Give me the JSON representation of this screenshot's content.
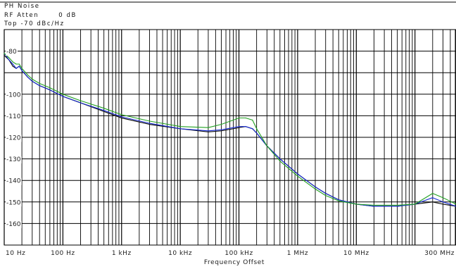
{
  "header": {
    "line1": "PH Noise",
    "line2_label": "RF Atten",
    "line2_value": "0 dB",
    "line3": "Top -70 dBc/Hz"
  },
  "chart_data": {
    "type": "line",
    "title": "",
    "xlabel": "Frequency Offset",
    "ylabel": "",
    "x_scale": "log",
    "xlim": [
      10,
      500000000
    ],
    "ylim": [
      -170,
      -70
    ],
    "grid": true,
    "y_ticks": [
      -80,
      -90,
      -100,
      -110,
      -120,
      -130,
      -140,
      -150,
      -160
    ],
    "y_tick_labels": [
      "-80",
      "",
      "-100",
      "-110",
      "-120",
      "-130",
      "-140",
      "-150",
      "-160"
    ],
    "x_ticks": [
      10,
      100,
      1000,
      10000,
      100000,
      1000000,
      10000000,
      300000000
    ],
    "x_tick_labels": [
      "10 Hz",
      "100 Hz",
      "1 kHz",
      "10 kHz",
      "100 kHz",
      "1 MHz",
      "10 MHz",
      "300 MHz"
    ],
    "series": [
      {
        "color": "#111111",
        "x": [
          10,
          12,
          14,
          16,
          18,
          20,
          25,
          30,
          40,
          60,
          100,
          200,
          500,
          1000,
          3000,
          10000,
          30000,
          50000,
          80000,
          100000,
          130000,
          170000,
          200000,
          300000,
          500000,
          1000000,
          2000000,
          3000000,
          5000000,
          10000000,
          20000000,
          50000000,
          100000000,
          200000000,
          300000000,
          500000000
        ],
        "y": [
          -82,
          -84,
          -87,
          -88,
          -87,
          -89,
          -92,
          -94,
          -96,
          -98,
          -101,
          -104,
          -108,
          -111,
          -114,
          -116,
          -117.5,
          -117,
          -116,
          -115.5,
          -115,
          -116,
          -118,
          -124,
          -130,
          -137,
          -143,
          -146,
          -149,
          -151,
          -152,
          -152,
          -151,
          -150,
          -151,
          -152
        ]
      },
      {
        "color": "#1a2fd6",
        "x": [
          10,
          12,
          14,
          16,
          18,
          20,
          25,
          30,
          40,
          60,
          100,
          200,
          500,
          1000,
          3000,
          10000,
          30000,
          50000,
          80000,
          100000,
          130000,
          170000,
          200000,
          300000,
          500000,
          1000000,
          2000000,
          3000000,
          5000000,
          10000000,
          20000000,
          50000000,
          100000000,
          200000000,
          300000000,
          500000000
        ],
        "y": [
          -81,
          -84,
          -86,
          -88,
          -87,
          -89,
          -92,
          -94,
          -96,
          -98,
          -101,
          -104,
          -107.5,
          -110.5,
          -113.5,
          -116,
          -117,
          -116.5,
          -115.5,
          -115,
          -115,
          -116,
          -118,
          -124,
          -130,
          -137,
          -143,
          -146,
          -149,
          -151,
          -152,
          -152,
          -151,
          -148,
          -150,
          -152
        ]
      },
      {
        "color": "#22a022",
        "x": [
          10,
          12,
          14,
          16,
          18,
          20,
          25,
          30,
          40,
          60,
          100,
          200,
          500,
          1000,
          3000,
          10000,
          30000,
          50000,
          80000,
          100000,
          130000,
          170000,
          200000,
          300000,
          500000,
          1000000,
          2000000,
          3000000,
          5000000,
          10000000,
          20000000,
          50000000,
          100000000,
          200000000,
          300000000,
          500000000
        ],
        "y": [
          -81,
          -83,
          -85,
          -86,
          -86,
          -88,
          -91,
          -93,
          -95,
          -97,
          -100,
          -103,
          -106.5,
          -109.5,
          -112.5,
          -115,
          -115.5,
          -114,
          -112,
          -111,
          -111,
          -112,
          -116,
          -124,
          -131,
          -138,
          -144,
          -147,
          -149.5,
          -151,
          -151.5,
          -151.5,
          -151,
          -146,
          -148,
          -151
        ]
      }
    ]
  }
}
